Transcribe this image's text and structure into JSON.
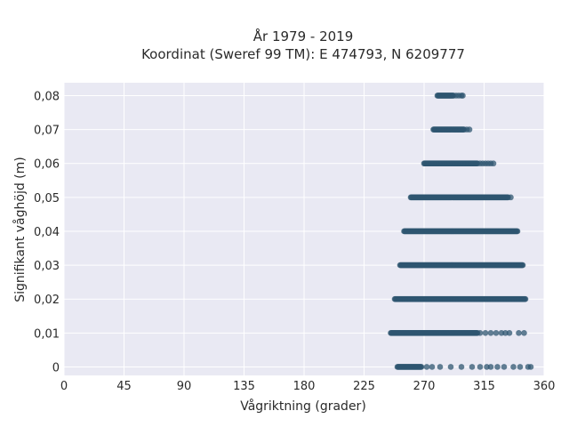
{
  "chart_data": {
    "type": "scatter",
    "title_lines": [
      "År 1979 - 2019",
      "Koordinat (Sweref 99 TM): E 474793, N 6209777"
    ],
    "xlabel": "Vågriktning (grader)",
    "ylabel": "Signifikant våghöjd (m)",
    "xlim": [
      0,
      360
    ],
    "ylim": [
      -0.0025,
      0.0838
    ],
    "x_ticks": [
      0,
      45,
      90,
      135,
      180,
      225,
      270,
      315,
      360
    ],
    "x_tick_labels": [
      "0",
      "45",
      "90",
      "135",
      "180",
      "225",
      "270",
      "315",
      "360"
    ],
    "y_ticks": [
      0,
      0.01,
      0.02,
      0.03,
      0.04,
      0.05,
      0.06,
      0.07,
      0.08
    ],
    "y_tick_labels": [
      "0",
      "0,01",
      "0,02",
      "0,03",
      "0,04",
      "0,05",
      "0,06",
      "0,07",
      "0,08"
    ],
    "grid": true,
    "background": "#e9e9f3",
    "marker_color": "#2f5670",
    "rows": [
      {
        "y": 0.08,
        "dense": [
          [
            280,
            292
          ]
        ],
        "sparse": [
          294,
          296,
          298
        ],
        "outliers": [
          299
        ]
      },
      {
        "y": 0.07,
        "dense": [
          [
            277,
            300
          ]
        ],
        "sparse": [
          302,
          304
        ],
        "outliers": []
      },
      {
        "y": 0.06,
        "dense": [
          [
            270,
            310
          ]
        ],
        "sparse": [
          312,
          314,
          316,
          318,
          320
        ],
        "outliers": [
          322
        ]
      },
      {
        "y": 0.05,
        "dense": [
          [
            260,
            333
          ]
        ],
        "sparse": [
          335
        ],
        "outliers": []
      },
      {
        "y": 0.04,
        "dense": [
          [
            255,
            340
          ]
        ],
        "sparse": [],
        "outliers": []
      },
      {
        "y": 0.03,
        "dense": [
          [
            252,
            344
          ]
        ],
        "sparse": [],
        "outliers": []
      },
      {
        "y": 0.02,
        "dense": [
          [
            248,
            346
          ]
        ],
        "sparse": [],
        "outliers": []
      },
      {
        "y": 0.01,
        "dense": [
          [
            245,
            310
          ]
        ],
        "sparse": [
          312,
          316,
          320,
          324,
          328,
          331,
          334
        ],
        "outliers": [
          341,
          345
        ]
      },
      {
        "y": 0,
        "dense": [
          [
            250,
            268
          ]
        ],
        "sparse": [
          272,
          276,
          282,
          290,
          298,
          306,
          312
        ],
        "outliers": [
          317,
          320,
          325,
          330,
          337,
          342,
          348,
          350
        ]
      }
    ]
  }
}
